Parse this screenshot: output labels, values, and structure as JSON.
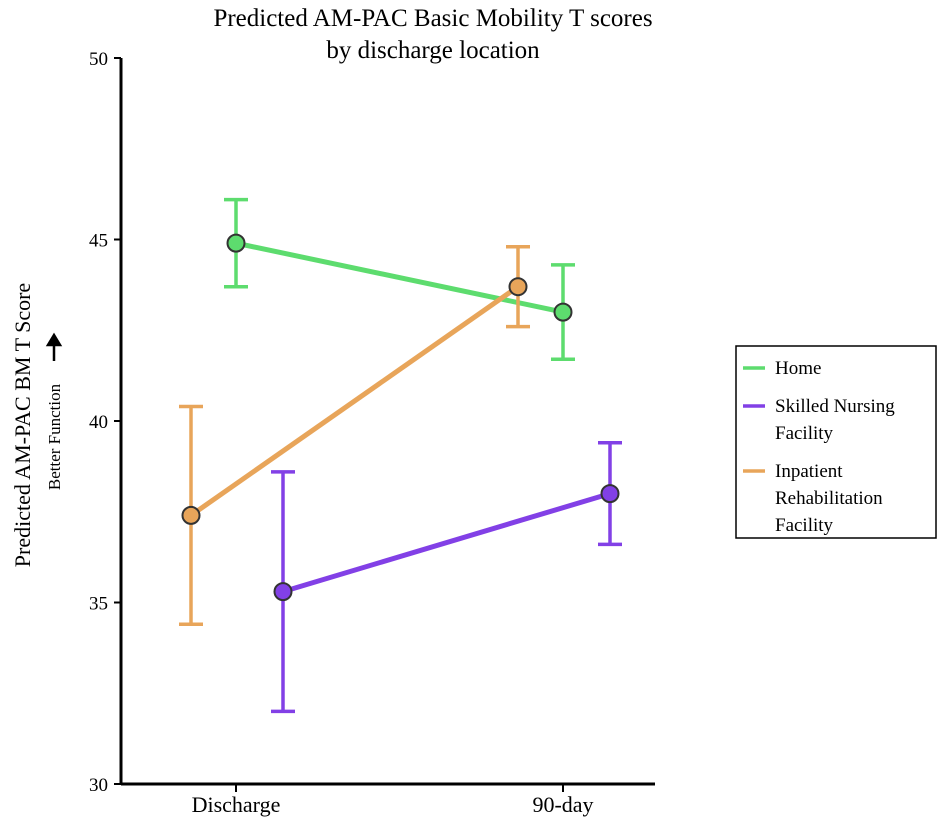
{
  "chart_data": {
    "type": "line",
    "title": [
      "Predicted AM-PAC Basic Mobility T scores",
      "by discharge location"
    ],
    "ylabel": "Predicted AM-PAC BM T Score",
    "ylabel_sub": "Better Function",
    "categories": [
      "Discharge",
      "90-day"
    ],
    "ylim": [
      30,
      50
    ],
    "yticks": [
      30,
      35,
      40,
      45,
      50
    ],
    "series": [
      {
        "name": "Home",
        "color": "#5ddc6e",
        "values": [
          44.9,
          43.0
        ],
        "lower": [
          43.7,
          41.7
        ],
        "upper": [
          46.1,
          44.3
        ]
      },
      {
        "name": "Skilled Nursing Facility",
        "color": "#8240e6",
        "values": [
          35.3,
          38.0
        ],
        "lower": [
          32.0,
          36.6
        ],
        "upper": [
          38.6,
          39.4
        ]
      },
      {
        "name": "Inpatient Rehabilitation Facility",
        "color": "#e8a55a",
        "values": [
          37.4,
          43.7
        ],
        "lower": [
          34.4,
          42.6
        ],
        "upper": [
          40.4,
          44.8
        ]
      }
    ],
    "legend": {
      "position": "right",
      "entries": [
        {
          "lines": [
            "Home"
          ]
        },
        {
          "lines": [
            "Skilled Nursing",
            "Facility"
          ]
        },
        {
          "lines": [
            "Inpatient",
            "Rehabilitation",
            "Facility"
          ]
        }
      ]
    },
    "grid": false
  }
}
